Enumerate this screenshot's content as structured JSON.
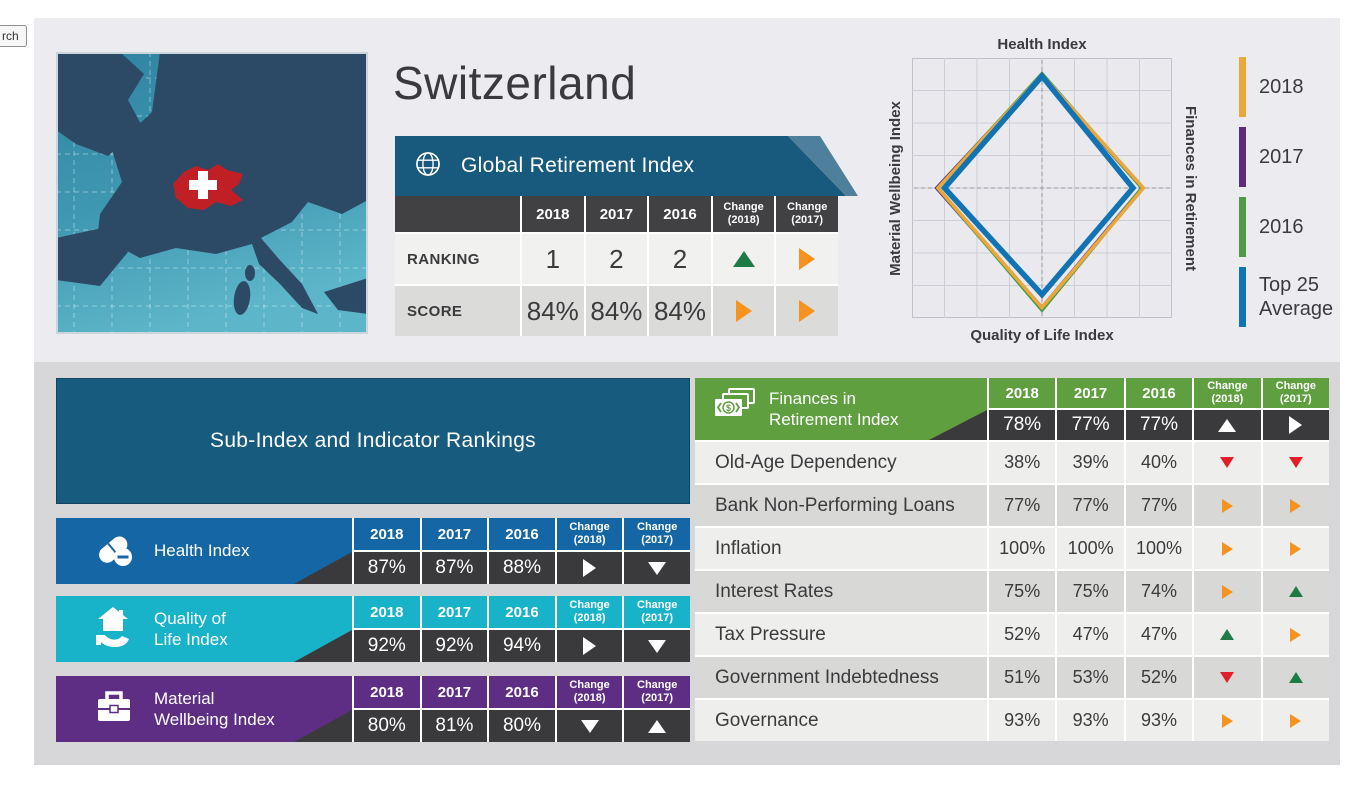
{
  "page": {
    "search_button_label": "rch"
  },
  "country": {
    "title": "Switzerland"
  },
  "map": {
    "highlighted_country": "Switzerland"
  },
  "columns": {
    "years": [
      "2018",
      "2017",
      "2016"
    ],
    "changes": [
      {
        "line1": "Change",
        "line2": "(2018)"
      },
      {
        "line1": "Change",
        "line2": "(2017)"
      }
    ]
  },
  "arrow_colors": {
    "green": "#1e7b45",
    "orange": "#f6921e",
    "red": "#e21f26",
    "white": "#ffffff"
  },
  "global_index": {
    "banner_label": "Global Retirement Index",
    "icon": "globe-icon",
    "rows": [
      {
        "label": "RANKING",
        "values": [
          "1",
          "2",
          "2"
        ],
        "changes": [
          {
            "dir": "up",
            "color": "green"
          },
          {
            "dir": "right",
            "color": "orange"
          }
        ]
      },
      {
        "label": "SCORE",
        "values": [
          "84%",
          "84%",
          "84%"
        ],
        "changes": [
          {
            "dir": "right",
            "color": "orange"
          },
          {
            "dir": "right",
            "color": "orange"
          }
        ]
      }
    ]
  },
  "chart_data": {
    "type": "radar",
    "axes": [
      "Health Index",
      "Finances in Retirement",
      "Quality of Life Index",
      "Material Wellbeing Index"
    ],
    "series": [
      {
        "name": "2018",
        "color": "#eaa83c",
        "values": [
          87,
          78,
          92,
          80
        ]
      },
      {
        "name": "2017",
        "color": "#5e2c7e",
        "values": [
          87,
          77,
          92,
          81
        ]
      },
      {
        "name": "2016",
        "color": "#4e9a47",
        "values": [
          88,
          77,
          94,
          80
        ]
      },
      {
        "name": "Top 25 Average",
        "color": "#1173b4",
        "values": [
          86,
          70,
          82,
          75
        ]
      }
    ],
    "range": [
      0,
      100
    ],
    "grid": true,
    "legend_position": "right"
  },
  "sub_index": {
    "banner_label": "Sub-Index and Indicator Rankings",
    "tables": [
      {
        "label_lines": [
          "Health Index"
        ],
        "icon": "pills-icon",
        "color": "#1566a4",
        "values": [
          "87%",
          "87%",
          "88%"
        ],
        "changes": [
          {
            "dir": "right",
            "color": "white"
          },
          {
            "dir": "down",
            "color": "white"
          }
        ]
      },
      {
        "label_lines": [
          "Quality of",
          "Life Index"
        ],
        "icon": "house-hand-icon",
        "color": "#18b3c9",
        "values": [
          "92%",
          "92%",
          "94%"
        ],
        "changes": [
          {
            "dir": "right",
            "color": "white"
          },
          {
            "dir": "down",
            "color": "white"
          }
        ]
      },
      {
        "label_lines": [
          "Material",
          "Wellbeing Index"
        ],
        "icon": "briefcase-icon",
        "color": "#5d2e84",
        "values": [
          "80%",
          "81%",
          "80%"
        ],
        "changes": [
          {
            "dir": "down",
            "color": "white"
          },
          {
            "dir": "up",
            "color": "white"
          }
        ]
      }
    ]
  },
  "finances": {
    "header": {
      "label_lines": [
        "Finances in",
        "Retirement Index"
      ],
      "icon": "banknotes-icon",
      "color": "#609f40",
      "values": [
        "78%",
        "77%",
        "77%"
      ],
      "changes": [
        {
          "dir": "up",
          "color": "white"
        },
        {
          "dir": "right",
          "color": "white"
        }
      ]
    },
    "rows": [
      {
        "name": "Old-Age Dependency",
        "values": [
          "38%",
          "39%",
          "40%"
        ],
        "changes": [
          {
            "dir": "down",
            "color": "red"
          },
          {
            "dir": "down",
            "color": "red"
          }
        ]
      },
      {
        "name": "Bank Non-Performing Loans",
        "values": [
          "77%",
          "77%",
          "77%"
        ],
        "changes": [
          {
            "dir": "right",
            "color": "orange"
          },
          {
            "dir": "right",
            "color": "orange"
          }
        ]
      },
      {
        "name": "Inflation",
        "values": [
          "100%",
          "100%",
          "100%"
        ],
        "changes": [
          {
            "dir": "right",
            "color": "orange"
          },
          {
            "dir": "right",
            "color": "orange"
          }
        ]
      },
      {
        "name": "Interest Rates",
        "values": [
          "75%",
          "75%",
          "74%"
        ],
        "changes": [
          {
            "dir": "right",
            "color": "orange"
          },
          {
            "dir": "up",
            "color": "green"
          }
        ]
      },
      {
        "name": "Tax Pressure",
        "values": [
          "52%",
          "47%",
          "47%"
        ],
        "changes": [
          {
            "dir": "up",
            "color": "green"
          },
          {
            "dir": "right",
            "color": "orange"
          }
        ]
      },
      {
        "name": "Government Indebtedness",
        "values": [
          "51%",
          "53%",
          "52%"
        ],
        "changes": [
          {
            "dir": "down",
            "color": "red"
          },
          {
            "dir": "up",
            "color": "green"
          }
        ]
      },
      {
        "name": "Governance",
        "values": [
          "93%",
          "93%",
          "93%"
        ],
        "changes": [
          {
            "dir": "right",
            "color": "orange"
          },
          {
            "dir": "right",
            "color": "orange"
          }
        ]
      }
    ]
  }
}
